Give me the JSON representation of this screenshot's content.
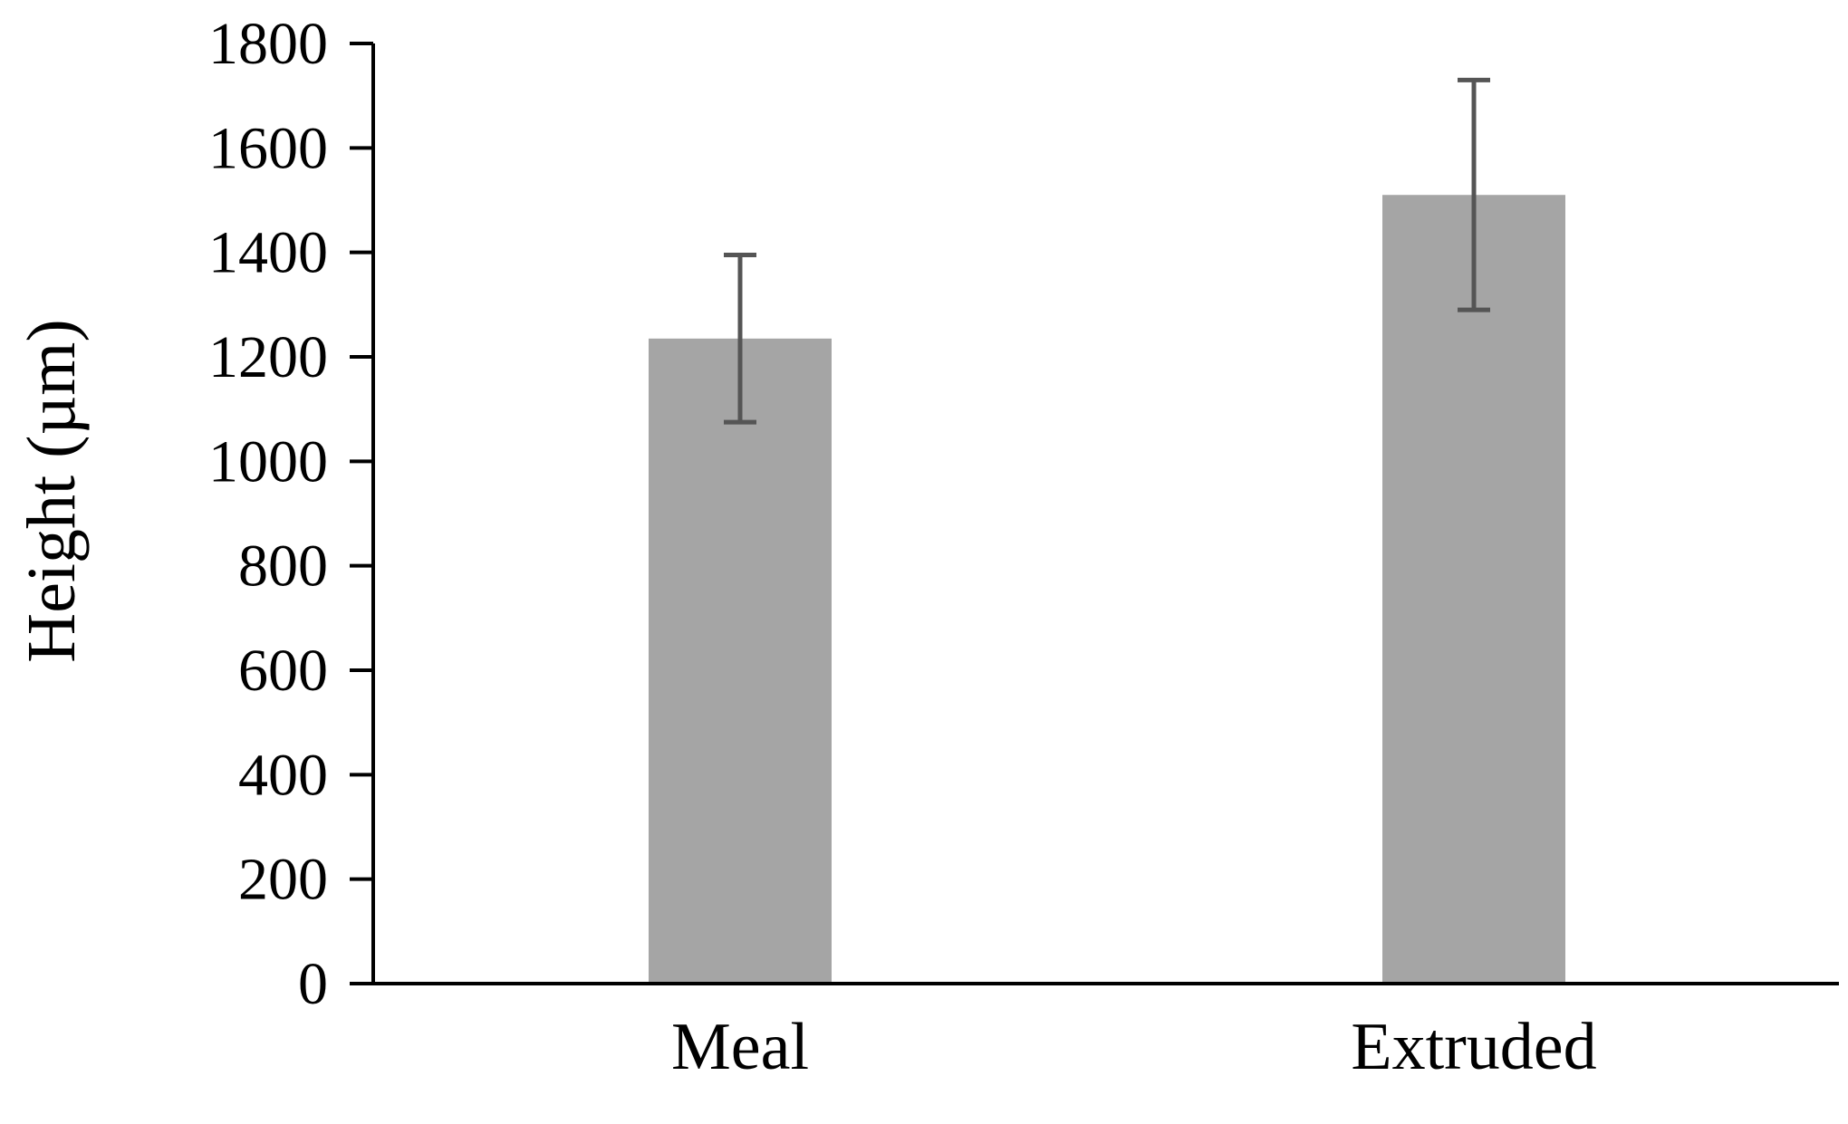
{
  "chart_data": {
    "type": "bar",
    "title": "",
    "xlabel": "",
    "ylabel": "Height (µm)",
    "ylim": [
      0,
      1800
    ],
    "yticks": [
      "0",
      "200",
      "400",
      "600",
      "800",
      "1000",
      "1200",
      "1400",
      "1600",
      "1800"
    ],
    "categories": [
      "Meal",
      "Extruded"
    ],
    "series": [
      {
        "name": "Height",
        "values": [
          1235,
          1510
        ],
        "error": [
          160,
          220
        ]
      }
    ],
    "grid": false,
    "legend": "none",
    "colors": {
      "bar": "#a5a5a5",
      "error_bar": "#555555",
      "axis": "#000000"
    }
  }
}
